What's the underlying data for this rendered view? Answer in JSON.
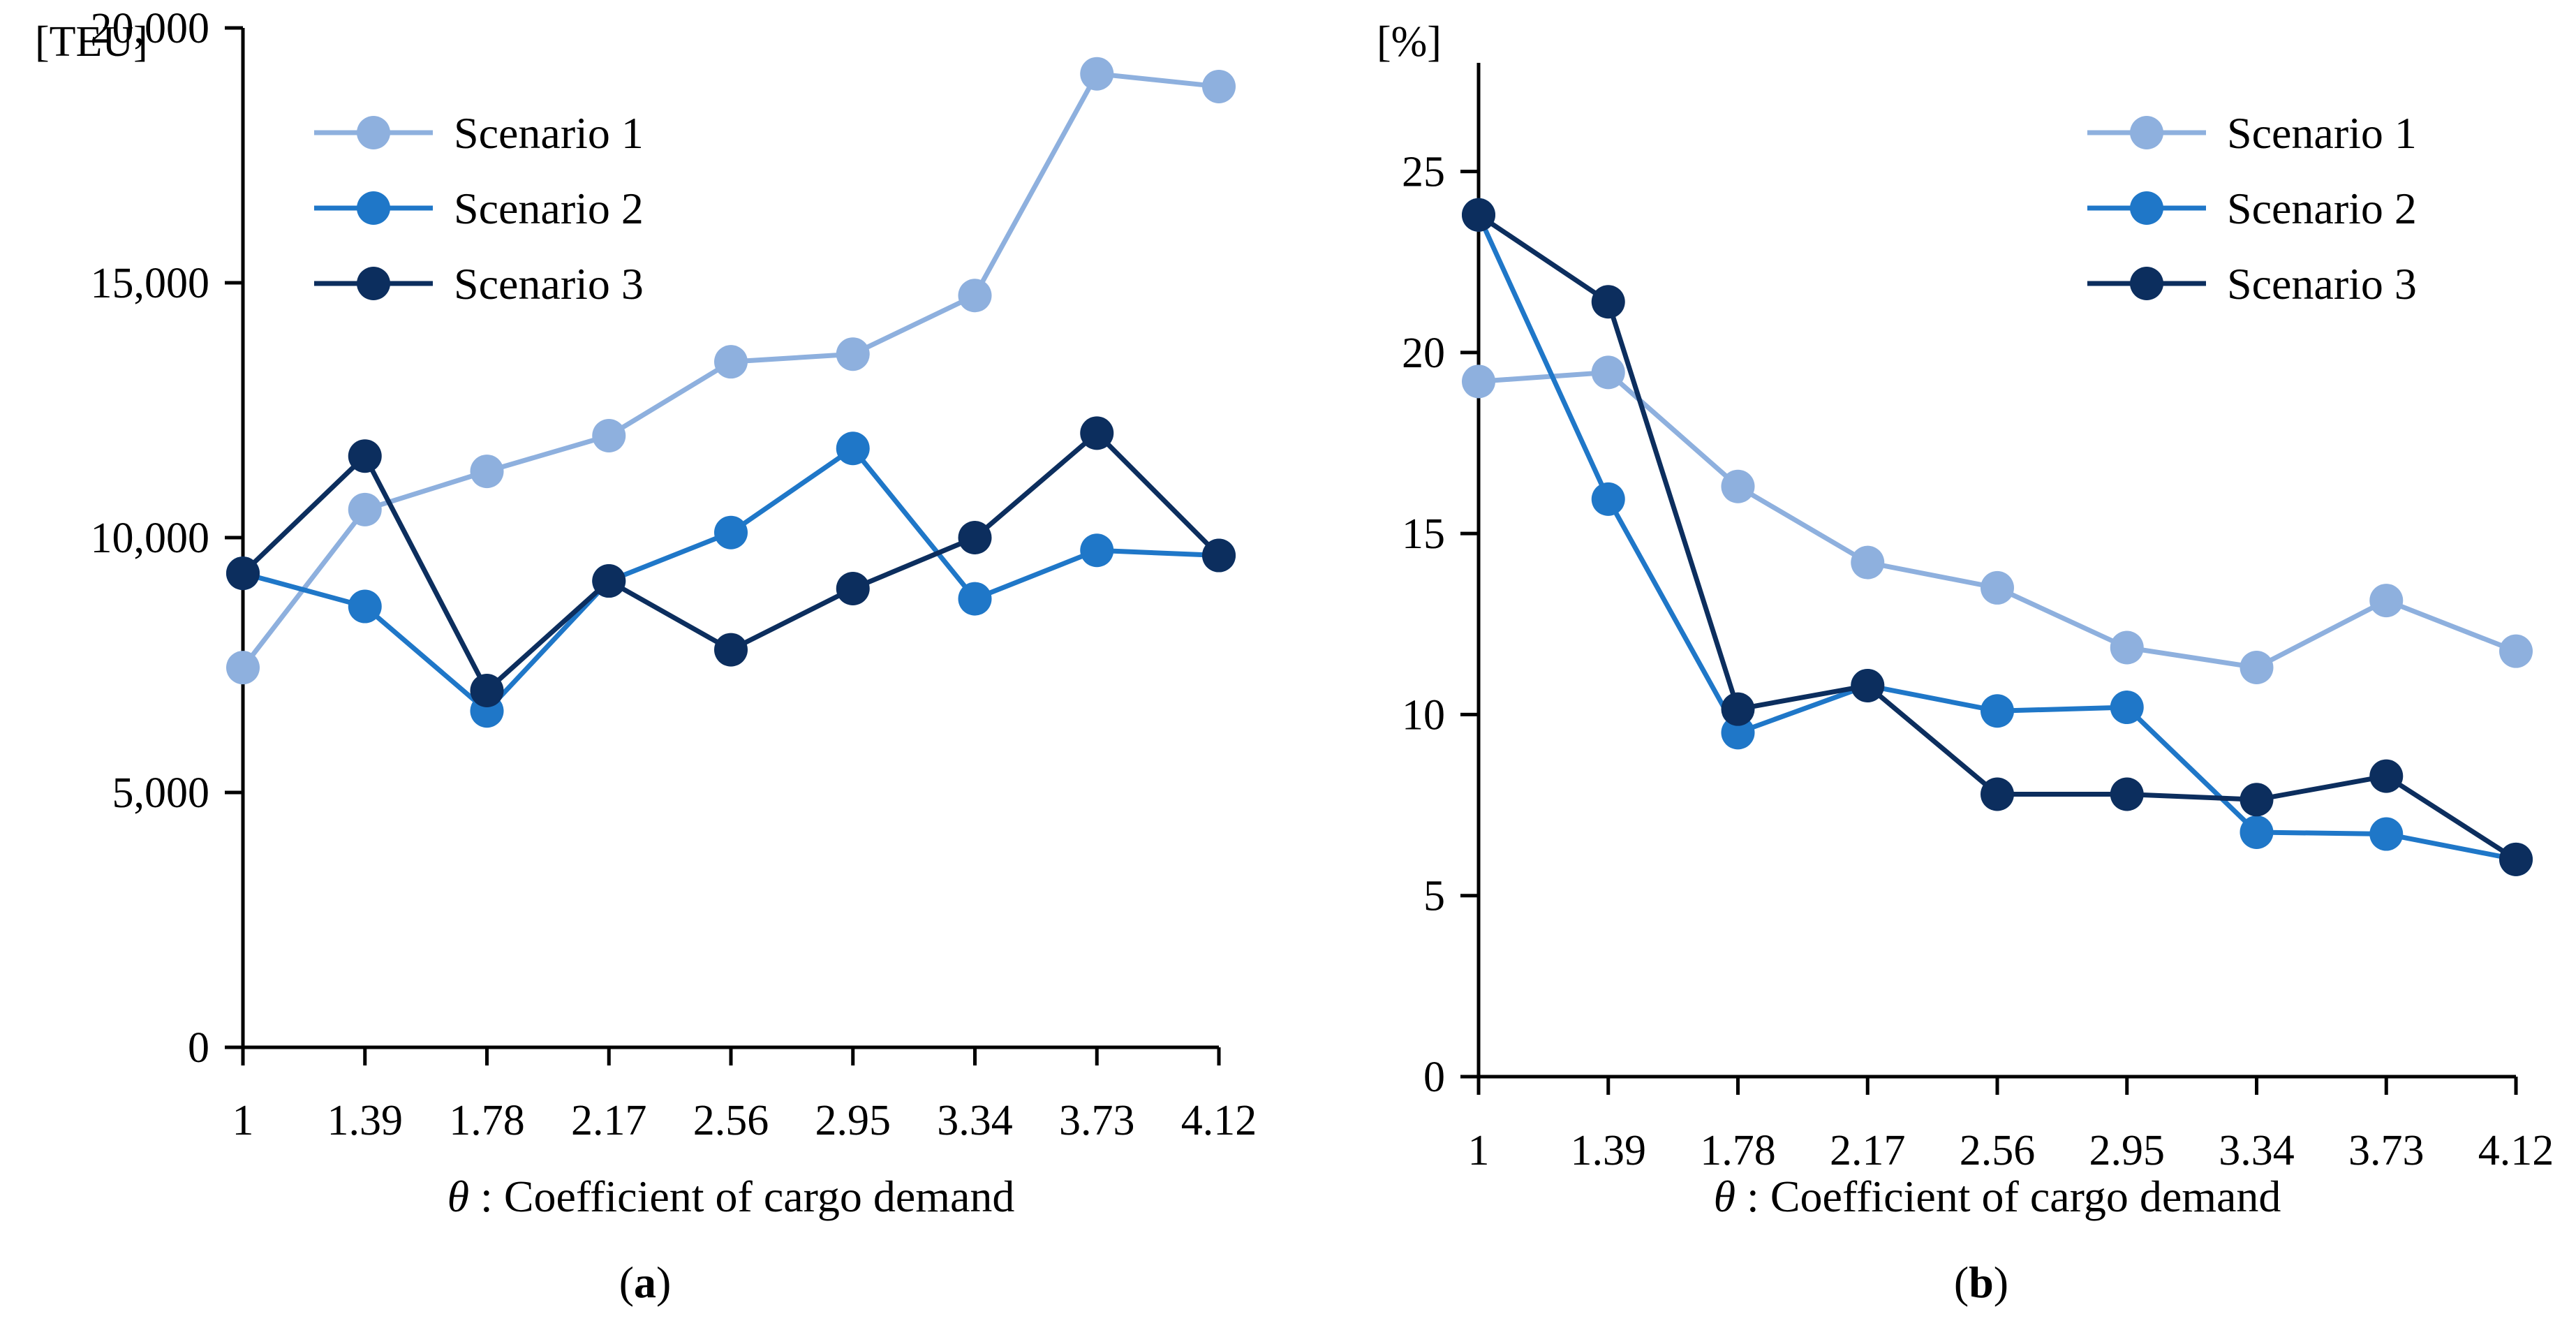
{
  "chart_data": [
    {
      "type": "line",
      "panel_label": "(a)",
      "panel_letter": "a",
      "unit_label": "[TEU]",
      "xlabel_symbol": "θ",
      "xlabel": " : Coefficient of  cargo demand",
      "categories": [
        "1",
        "1.39",
        "1.78",
        "2.17",
        "2.56",
        "2.95",
        "3.34",
        "3.73",
        "4.12"
      ],
      "ylim": [
        0,
        20000
      ],
      "y_ticks": [
        0,
        5000,
        10000,
        15000,
        20000
      ],
      "y_tick_labels": [
        "0",
        "5,000",
        "10,000",
        "15,000",
        "20,000"
      ],
      "legend_position": "top-left",
      "grid": false,
      "series": [
        {
          "name": "Scenario 1",
          "color": "#8eb0de",
          "values": [
            7450,
            10550,
            11300,
            12000,
            13450,
            13600,
            14750,
            19100,
            18850
          ]
        },
        {
          "name": "Scenario 2",
          "color": "#1f77c8",
          "values": [
            9300,
            8650,
            6600,
            9150,
            10100,
            11750,
            8800,
            9750,
            9650
          ]
        },
        {
          "name": "Scenario 3",
          "color": "#0c2e5e",
          "values": [
            9300,
            11600,
            7000,
            9150,
            7800,
            9000,
            10000,
            12050,
            9650
          ]
        }
      ]
    },
    {
      "type": "line",
      "panel_label": "(b)",
      "panel_letter": "b",
      "unit_label": "[%]",
      "xlabel_symbol": "θ",
      "xlabel": " : Coefficient of  cargo demand",
      "categories": [
        "1",
        "1.39",
        "1.78",
        "2.17",
        "2.56",
        "2.95",
        "3.34",
        "3.73",
        "4.12"
      ],
      "ylim": [
        0,
        28
      ],
      "y_ticks": [
        0,
        5,
        10,
        15,
        20,
        25
      ],
      "y_tick_labels": [
        "0",
        "5",
        "10",
        "15",
        "20",
        "25"
      ],
      "legend_position": "top-right",
      "grid": false,
      "series": [
        {
          "name": "Scenario 1",
          "color": "#8eb0de",
          "values": [
            19.2,
            19.45,
            16.3,
            14.2,
            13.5,
            11.85,
            11.3,
            13.15,
            11.75
          ]
        },
        {
          "name": "Scenario 2",
          "color": "#1f77c8",
          "values": [
            23.8,
            15.95,
            9.5,
            10.8,
            10.1,
            10.2,
            6.75,
            6.7,
            6.0
          ]
        },
        {
          "name": "Scenario 3",
          "color": "#0c2e5e",
          "values": [
            23.8,
            21.4,
            10.15,
            10.8,
            7.8,
            7.8,
            7.65,
            8.3,
            6.0
          ]
        }
      ]
    }
  ]
}
